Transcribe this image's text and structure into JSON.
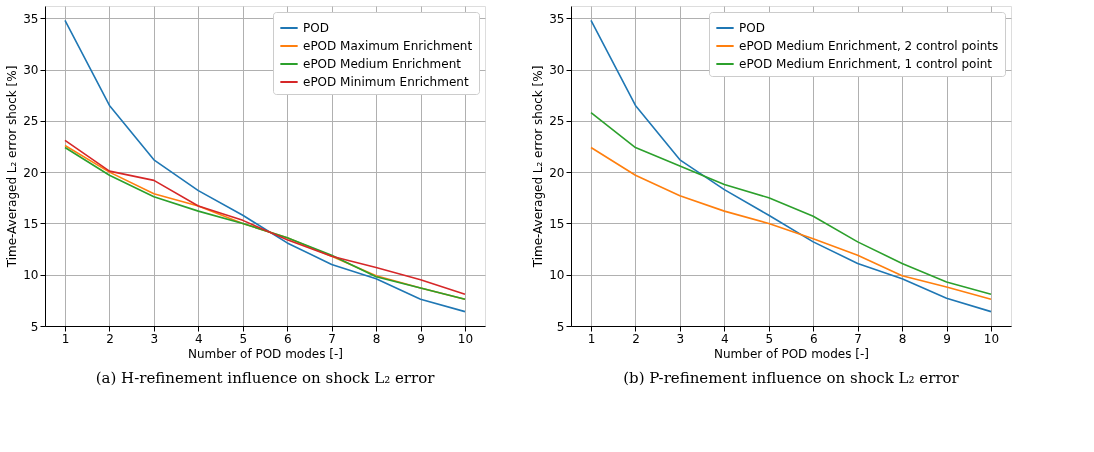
{
  "chart_data": [
    {
      "type": "line",
      "xlabel": "Number of POD modes [-]",
      "ylabel": "Time-Averaged L₂ error shock [%]",
      "x": [
        1,
        2,
        3,
        4,
        5,
        6,
        7,
        8,
        9,
        10
      ],
      "xlim": [
        0.55,
        10.45
      ],
      "xticks": [
        1,
        2,
        3,
        4,
        5,
        6,
        7,
        8,
        9,
        10
      ],
      "ylim": [
        5,
        36.2
      ],
      "yticks": [
        5,
        10,
        15,
        20,
        25,
        30,
        35
      ],
      "grid": true,
      "legend": "top right",
      "line_style": "solid",
      "annotations": [
        "(a) H-refinement influence on shock L₂ error"
      ],
      "series": [
        {
          "name": "POD",
          "color": "#1f77b4",
          "values": [
            34.8,
            26.5,
            21.2,
            18.2,
            15.8,
            13.1,
            11.0,
            9.6,
            7.6,
            6.4
          ]
        },
        {
          "name": "ePOD Maximum Enrichment",
          "color": "#ff7f0e",
          "values": [
            22.6,
            20.0,
            17.9,
            16.7,
            15.0,
            13.6,
            11.8,
            9.9,
            8.7,
            7.6
          ]
        },
        {
          "name": "ePOD Medium Enrichment",
          "color": "#2ca02c",
          "values": [
            22.4,
            19.7,
            17.6,
            16.2,
            15.0,
            13.6,
            11.9,
            9.8,
            8.7,
            7.6
          ]
        },
        {
          "name": "ePOD Minimum Enrichment",
          "color": "#d62728",
          "values": [
            23.1,
            20.1,
            19.2,
            16.7,
            15.3,
            13.4,
            11.8,
            10.7,
            9.5,
            8.1
          ]
        }
      ]
    },
    {
      "type": "line",
      "xlabel": "Number of POD modes [-]",
      "ylabel": "Time-Averaged L₂ error shock [%]",
      "x": [
        1,
        2,
        3,
        4,
        5,
        6,
        7,
        8,
        9,
        10
      ],
      "xlim": [
        0.55,
        10.45
      ],
      "xticks": [
        1,
        2,
        3,
        4,
        5,
        6,
        7,
        8,
        9,
        10
      ],
      "ylim": [
        5,
        36.2
      ],
      "yticks": [
        5,
        10,
        15,
        20,
        25,
        30,
        35
      ],
      "grid": true,
      "legend": "top right",
      "line_style": "solid",
      "annotations": [
        "(b) P-refinement influence on shock L₂ error"
      ],
      "series": [
        {
          "name": "POD",
          "color": "#1f77b4",
          "values": [
            34.8,
            26.5,
            21.2,
            18.3,
            15.8,
            13.2,
            11.1,
            9.6,
            7.7,
            6.4
          ]
        },
        {
          "name": "ePOD Medium Enrichment, 2 control points",
          "color": "#ff7f0e",
          "values": [
            22.4,
            19.7,
            17.7,
            16.2,
            15.0,
            13.5,
            11.9,
            9.9,
            8.8,
            7.6
          ]
        },
        {
          "name": "ePOD Medium Enrichment, 1 control point",
          "color": "#2ca02c",
          "values": [
            25.8,
            22.4,
            20.6,
            18.8,
            17.5,
            15.7,
            13.2,
            11.1,
            9.3,
            8.1
          ]
        }
      ]
    }
  ]
}
